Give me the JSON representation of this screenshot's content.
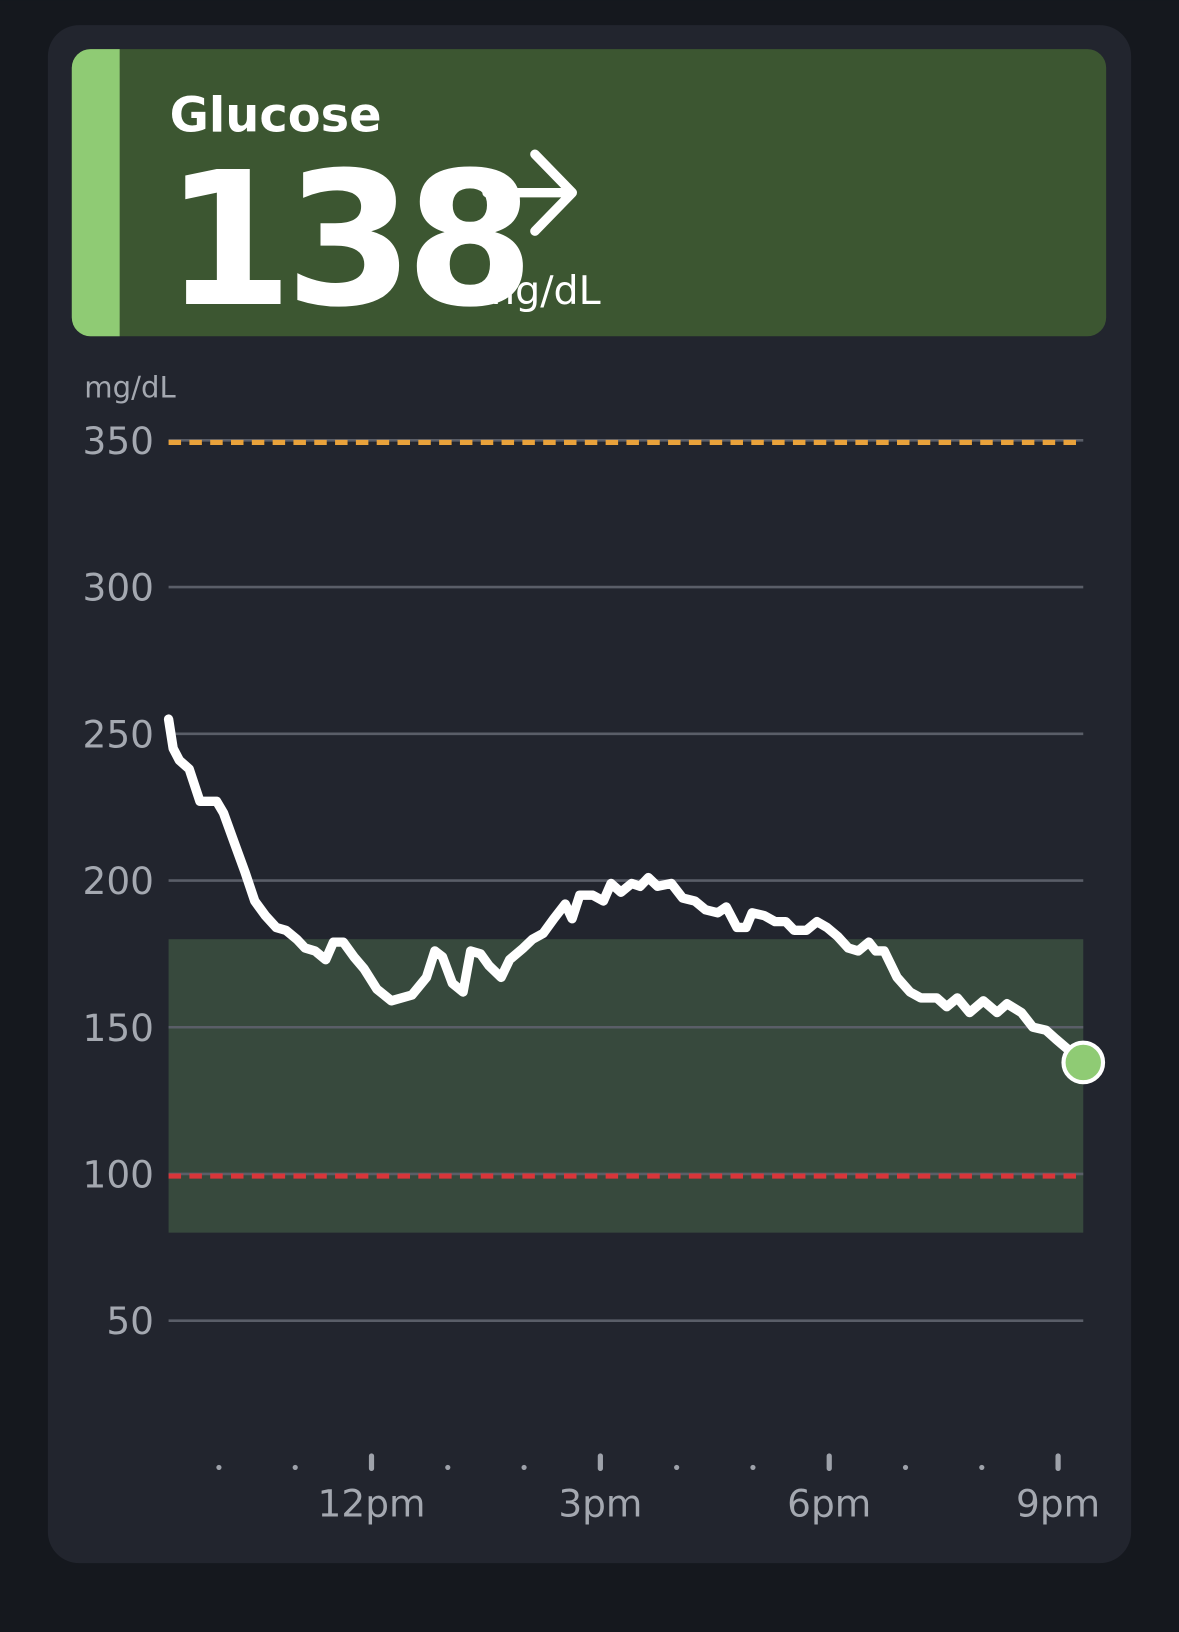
{
  "header": {
    "label": "Glucose",
    "value": 138,
    "unit": "mg/dL"
  },
  "chart_data": {
    "type": "line",
    "y_label": "mg/dL",
    "color": "#ffffff",
    "marker_color": "#8fcb74",
    "ylim": [
      50,
      350
    ],
    "yticks": [
      50,
      100,
      150,
      200,
      250,
      300,
      350
    ],
    "grid": true,
    "xlim": [
      9.34,
      21.33
    ],
    "xticks": [
      {
        "value": 12,
        "label": "12pm"
      },
      {
        "value": 15,
        "label": "3pm"
      },
      {
        "value": 18,
        "label": "6pm"
      },
      {
        "value": 21,
        "label": "9pm"
      }
    ],
    "xminorticks": [
      10,
      11,
      13,
      14,
      16,
      17,
      19,
      20
    ],
    "target_range": [
      80,
      180
    ],
    "target_color": "#37493d",
    "high_threshold": 350,
    "high_color": "#e9a23b",
    "low_threshold": 100,
    "low_color": "#d9363a",
    "x": [
      9.34,
      9.4,
      9.48,
      9.61,
      9.75,
      9.97,
      10.06,
      10.2,
      10.34,
      10.47,
      10.61,
      10.75,
      10.88,
      11.02,
      11.13,
      11.26,
      11.4,
      11.5,
      11.63,
      11.77,
      11.9,
      12.07,
      12.26,
      12.53,
      12.72,
      12.83,
      12.93,
      13.06,
      13.2,
      13.3,
      13.43,
      13.54,
      13.7,
      13.81,
      13.99,
      14.11,
      14.25,
      14.39,
      14.54,
      14.63,
      14.73,
      14.9,
      15.04,
      15.14,
      15.27,
      15.41,
      15.52,
      15.63,
      15.75,
      15.93,
      16.08,
      16.24,
      16.38,
      16.54,
      16.65,
      16.79,
      16.91,
      16.99,
      17.15,
      17.29,
      17.43,
      17.54,
      17.7,
      17.84,
      17.97,
      18.11,
      18.25,
      18.38,
      18.52,
      18.61,
      18.72,
      18.89,
      19.06,
      19.2,
      19.41,
      19.54,
      19.68,
      19.84,
      20.02,
      20.2,
      20.33,
      20.52,
      20.67,
      20.84,
      20.97,
      21.33
    ],
    "values": [
      255,
      245,
      241,
      238,
      227,
      227,
      223,
      213,
      203,
      193,
      188,
      184,
      183,
      180,
      177,
      176,
      173,
      179,
      179,
      174,
      170,
      163,
      159,
      161,
      167,
      176,
      174,
      165,
      162,
      176,
      175,
      171,
      167,
      173,
      177,
      180,
      182,
      187,
      192,
      187,
      195,
      195,
      193,
      199,
      196,
      199,
      198,
      201,
      198,
      199,
      194,
      193,
      190,
      189,
      191,
      184,
      184,
      189,
      188,
      186,
      186,
      183,
      183,
      186,
      184,
      181,
      177,
      176,
      179,
      176,
      176,
      167,
      162,
      160,
      160,
      157,
      160,
      155,
      159,
      155,
      158,
      155,
      150,
      149,
      146,
      138
    ]
  }
}
